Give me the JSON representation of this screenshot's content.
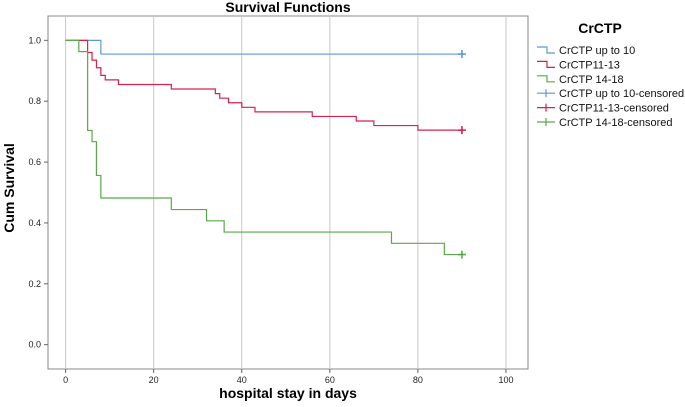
{
  "chart_data": {
    "type": "line",
    "step": true,
    "title": "Survival Functions",
    "xlabel": "hospital stay in days",
    "ylabel": "Cum Survival",
    "xlim": [
      -4,
      105
    ],
    "ylim": [
      -0.08,
      1.08
    ],
    "xticks": [
      0,
      20,
      40,
      60,
      80,
      100
    ],
    "yticks": [
      0.0,
      0.2,
      0.4,
      0.6,
      0.8,
      1.0
    ],
    "grid": "x",
    "legend_title": "CrCTP",
    "legend_position": "right",
    "series": [
      {
        "name": "CrCTP up to 10",
        "color": "#5b9bd5",
        "x": [
          0,
          8,
          90
        ],
        "y": [
          1.0,
          0.955,
          0.955
        ],
        "censored": {
          "x": [
            90
          ],
          "y": [
            0.955
          ]
        }
      },
      {
        "name": "CrCTP11-13",
        "color": "#d6204e",
        "x": [
          0,
          5,
          6,
          7,
          8,
          9,
          10,
          12,
          24,
          34,
          35,
          37,
          40,
          43,
          46,
          56,
          66,
          70,
          80,
          90
        ],
        "y": [
          1.0,
          0.96,
          0.935,
          0.91,
          0.885,
          0.87,
          0.87,
          0.855,
          0.84,
          0.825,
          0.81,
          0.795,
          0.78,
          0.765,
          0.765,
          0.75,
          0.735,
          0.72,
          0.705,
          0.705
        ],
        "censored": {
          "x": [
            90
          ],
          "y": [
            0.705
          ]
        }
      },
      {
        "name": "CrCTP 14-18",
        "color": "#5aa84b",
        "x": [
          0,
          3,
          5,
          6,
          7,
          8,
          24,
          32,
          36,
          74,
          86,
          90
        ],
        "y": [
          1.0,
          0.963,
          0.704,
          0.667,
          0.556,
          0.482,
          0.444,
          0.407,
          0.37,
          0.333,
          0.296,
          0.296
        ],
        "censored": {
          "x": [
            90
          ],
          "y": [
            0.296
          ]
        }
      }
    ],
    "legend_entries": [
      {
        "label": "CrCTP up to 10",
        "color": "#5b9bd5",
        "symbol": "step"
      },
      {
        "label": "CrCTP11-13",
        "color": "#d6204e",
        "symbol": "step"
      },
      {
        "label": "CrCTP 14-18",
        "color": "#5aa84b",
        "symbol": "step"
      },
      {
        "label": "CrCTP up to 10-censored",
        "color": "#5b9bd5",
        "symbol": "plus"
      },
      {
        "label": "CrCTP11-13-censored",
        "color": "#d6204e",
        "symbol": "plus"
      },
      {
        "label": "CrCTP 14-18-censored",
        "color": "#5aa84b",
        "symbol": "plus"
      }
    ]
  }
}
